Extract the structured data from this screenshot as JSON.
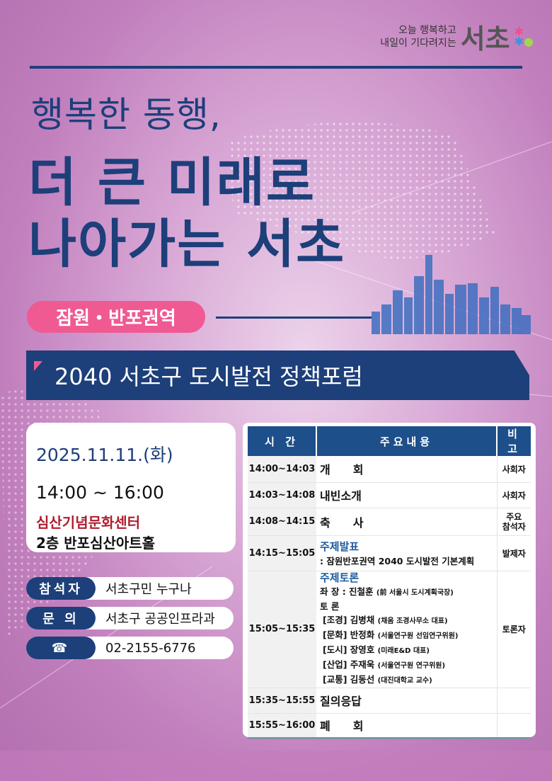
{
  "logo": {
    "slogan1": "오늘 행복하고",
    "slogan2": "내일이 기다려지는",
    "name": "서초"
  },
  "title": {
    "line1": "행복한 동행,",
    "line2": "더 큰 미래로",
    "line3": "나아가는 서초"
  },
  "region": "잠원・반포권역",
  "banner": "2040 서초구  도시발전 정책포럼",
  "info": {
    "date": "2025.11.11.(화)",
    "time": "14:00 ~ 16:00",
    "venue": "심산기념문화센터",
    "hall": "2층 반포심산아트홀"
  },
  "contacts": [
    {
      "label": "참석자",
      "value": "서초구민 누구나"
    },
    {
      "label": "문 의",
      "value": "서초구 공공인프라과"
    },
    {
      "label": "☎",
      "value": "02-2155-6776"
    }
  ],
  "schedule": {
    "headers": [
      "시 간",
      "주요내용",
      "비 고"
    ],
    "rows": [
      {
        "time": "14:00~14:03",
        "content": "개　　회",
        "note": "사회자"
      },
      {
        "time": "14:03~14:08",
        "content": "내빈소개",
        "note": "사회자"
      },
      {
        "time": "14:08~14:15",
        "content": "축　　사",
        "note": "주요\n참석자"
      },
      {
        "time": "14:15~15:05",
        "content": "주제발표",
        "sub": ": 잠원반포권역 2040 도시발전 기본계획",
        "note": "발제자"
      },
      {
        "time": "15:05~15:35",
        "content": "주제토론",
        "chair": "좌 장 : 진철훈",
        "chair_aff": "(前 서울시 도시계획국장)",
        "panel_label": "토 론",
        "panel": [
          {
            "n": "[조경] 김병채",
            "a": "(채움 조경사무소 대표)"
          },
          {
            "n": "[문화] 반정화",
            "a": "(서울연구원 선임연구위원)"
          },
          {
            "n": "[도시] 장영호",
            "a": "(미래E&D 대표)"
          },
          {
            "n": "[산업] 주재욱",
            "a": "(서울연구원 연구위원)"
          },
          {
            "n": "[교통] 김동선",
            "a": "(대진대학교 교수)"
          }
        ],
        "note": "토론자"
      },
      {
        "time": "15:35~15:55",
        "content": "질의응답",
        "note": ""
      },
      {
        "time": "15:55~16:00",
        "content": "폐　　회",
        "note": ""
      }
    ]
  },
  "colors": {
    "navy": "#1d3f7a",
    "pink": "#ef5a93",
    "venue_red": "#b01c2e"
  }
}
